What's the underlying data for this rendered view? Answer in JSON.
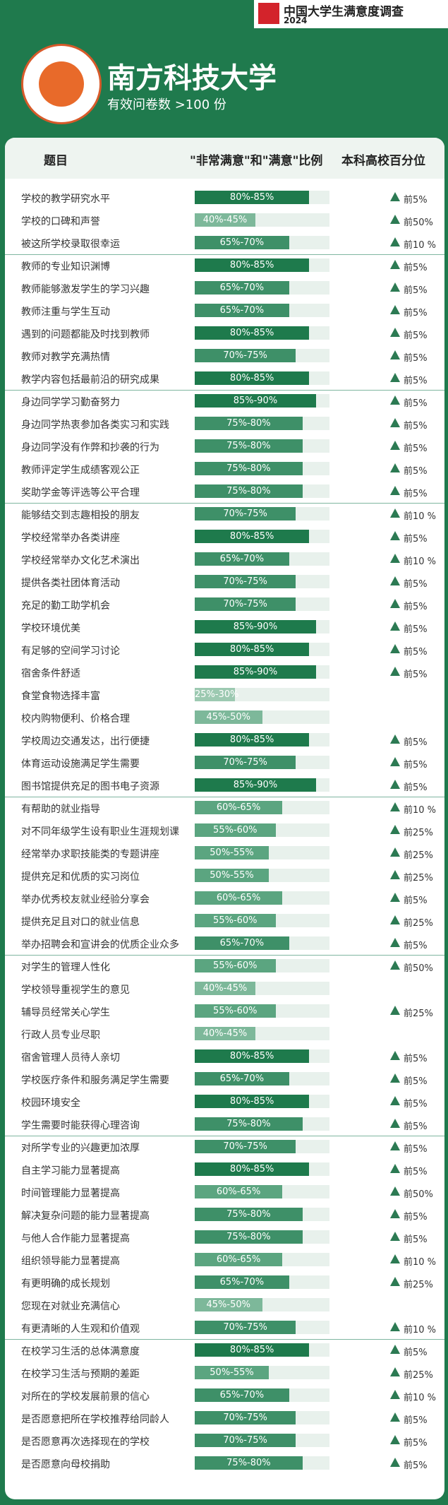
{
  "header": {
    "brand": "中国大学生满意度调查",
    "year": "2024",
    "title": "南方科技大学",
    "subtitle": "有效问卷数 >100 份"
  },
  "table": {
    "columns": [
      "题目",
      "\"非常满意\"和\"满意\"比例",
      "本科高校百分位"
    ],
    "groups": [
      {
        "rows": [
          {
            "item": "学校的教学研究水平",
            "range": "80%-85%",
            "high": 85,
            "rank": "前5%"
          },
          {
            "item": "学校的口碑和声誉",
            "range": "40%-45%",
            "high": 45,
            "rank": "前50%"
          },
          {
            "item": "被这所学校录取很幸运",
            "range": "65%-70%",
            "high": 70,
            "rank": "前10 %"
          }
        ]
      },
      {
        "rows": [
          {
            "item": "教师的专业知识渊博",
            "range": "80%-85%",
            "high": 85,
            "rank": "前5%"
          },
          {
            "item": "教师能够激发学生的学习兴趣",
            "range": "65%-70%",
            "high": 70,
            "rank": "前5%"
          },
          {
            "item": "教师注重与学生互动",
            "range": "65%-70%",
            "high": 70,
            "rank": "前5%"
          },
          {
            "item": "遇到的问题都能及时找到教师",
            "range": "80%-85%",
            "high": 85,
            "rank": "前5%"
          },
          {
            "item": "教师对教学充满热情",
            "range": "70%-75%",
            "high": 75,
            "rank": "前5%"
          },
          {
            "item": "教学内容包括最前沿的研究成果",
            "range": "80%-85%",
            "high": 85,
            "rank": "前5%"
          }
        ]
      },
      {
        "rows": [
          {
            "item": "身边同学学习勤奋努力",
            "range": "85%-90%",
            "high": 90,
            "rank": "前5%"
          },
          {
            "item": "身边同学热衷参加各类实习和实践",
            "range": "75%-80%",
            "high": 80,
            "rank": "前5%"
          },
          {
            "item": "身边同学没有作弊和抄袭的行为",
            "range": "75%-80%",
            "high": 80,
            "rank": "前5%"
          },
          {
            "item": "教师评定学生成绩客观公正",
            "range": "75%-80%",
            "high": 80,
            "rank": "前5%"
          },
          {
            "item": "奖助学金等评选等公平合理",
            "range": "75%-80%",
            "high": 80,
            "rank": "前5%"
          }
        ]
      },
      {
        "rows": [
          {
            "item": "能够结交到志趣相投的朋友",
            "range": "70%-75%",
            "high": 75,
            "rank": "前10 %"
          },
          {
            "item": "学校经常举办各类讲座",
            "range": "80%-85%",
            "high": 85,
            "rank": "前5%"
          },
          {
            "item": "学校经常举办文化艺术演出",
            "range": "65%-70%",
            "high": 70,
            "rank": "前10 %"
          },
          {
            "item": "提供各类社团体育活动",
            "range": "70%-75%",
            "high": 75,
            "rank": "前5%"
          },
          {
            "item": "充足的勤工助学机会",
            "range": "70%-75%",
            "high": 75,
            "rank": "前5%"
          },
          {
            "item": "学校环境优美",
            "range": "85%-90%",
            "high": 90,
            "rank": "前5%"
          },
          {
            "item": "有足够的空间学习讨论",
            "range": "80%-85%",
            "high": 85,
            "rank": "前5%"
          },
          {
            "item": "宿舍条件舒适",
            "range": "85%-90%",
            "high": 90,
            "rank": "前5%"
          },
          {
            "item": "食堂食物选择丰富",
            "range": "25%-30%",
            "high": 30
          },
          {
            "item": "校内购物便利、价格合理",
            "range": "45%-50%",
            "high": 50
          },
          {
            "item": "学校周边交通发达，出行便捷",
            "range": "80%-85%",
            "high": 85,
            "rank": "前5%"
          },
          {
            "item": "体育运动设施满足学生需要",
            "range": "70%-75%",
            "high": 75,
            "rank": "前5%"
          },
          {
            "item": "图书馆提供充足的图书电子资源",
            "range": "85%-90%",
            "high": 90,
            "rank": "前5%"
          }
        ]
      },
      {
        "rows": [
          {
            "item": "有帮助的就业指导",
            "range": "60%-65%",
            "high": 65,
            "rank": "前10 %"
          },
          {
            "item": "对不同年级学生设有职业生涯规划课",
            "range": "55%-60%",
            "high": 60,
            "rank": "前25%"
          },
          {
            "item": "经常举办求职技能类的专题讲座",
            "range": "50%-55%",
            "high": 55,
            "rank": "前25%"
          },
          {
            "item": "提供充足和优质的实习岗位",
            "range": "50%-55%",
            "high": 55,
            "rank": "前25%"
          },
          {
            "item": "举办优秀校友就业经验分享会",
            "range": "60%-65%",
            "high": 65,
            "rank": "前5%"
          },
          {
            "item": "提供充足且对口的就业信息",
            "range": "55%-60%",
            "high": 60,
            "rank": "前25%"
          },
          {
            "item": "举办招聘会和宣讲会的优质企业众多",
            "range": "65%-70%",
            "high": 70,
            "rank": "前5%"
          }
        ]
      },
      {
        "rows": [
          {
            "item": "对学生的管理人性化",
            "range": "55%-60%",
            "high": 60,
            "rank": "前50%"
          },
          {
            "item": "学校领导重视学生的意见",
            "range": "40%-45%",
            "high": 45
          },
          {
            "item": "辅导员经常关心学生",
            "range": "55%-60%",
            "high": 60,
            "rank": "前25%"
          },
          {
            "item": "行政人员专业尽职",
            "range": "40%-45%",
            "high": 45
          },
          {
            "item": "宿舍管理人员待人亲切",
            "range": "80%-85%",
            "high": 85,
            "rank": "前5%"
          },
          {
            "item": "学校医疗条件和服务满足学生需要",
            "range": "65%-70%",
            "high": 70,
            "rank": "前5%"
          },
          {
            "item": "校园环境安全",
            "range": "80%-85%",
            "high": 85,
            "rank": "前5%"
          },
          {
            "item": "学生需要时能获得心理咨询",
            "range": "75%-80%",
            "high": 80,
            "rank": "前5%"
          }
        ]
      },
      {
        "rows": [
          {
            "item": "对所学专业的兴趣更加浓厚",
            "range": "70%-75%",
            "high": 75,
            "rank": "前5%"
          },
          {
            "item": "自主学习能力显著提高",
            "range": "80%-85%",
            "high": 85,
            "rank": "前5%"
          },
          {
            "item": "时间管理能力显著提高",
            "range": "60%-65%",
            "high": 65,
            "rank": "前50%"
          },
          {
            "item": "解决复杂问题的能力显著提高",
            "range": "75%-80%",
            "high": 80,
            "rank": "前5%"
          },
          {
            "item": "与他人合作能力显著提高",
            "range": "75%-80%",
            "high": 80,
            "rank": "前5%"
          },
          {
            "item": "组织领导能力显著提高",
            "range": "60%-65%",
            "high": 65,
            "rank": "前10 %"
          },
          {
            "item": "有更明确的成长规划",
            "range": "65%-70%",
            "high": 70,
            "rank": "前25%"
          },
          {
            "item": "您现在对就业充满信心",
            "range": "45%-50%",
            "high": 50
          },
          {
            "item": "有更清晰的人生观和价值观",
            "range": "70%-75%",
            "high": 75,
            "rank": "前10 %"
          }
        ]
      },
      {
        "rows": [
          {
            "item": "在校学习生活的总体满意度",
            "range": "80%-85%",
            "high": 85,
            "rank": "前5%"
          },
          {
            "item": "在校学习生活与预期的差距",
            "range": "50%-55%",
            "high": 55,
            "rank": "前25%"
          },
          {
            "item": "对所在的学校发展前景的信心",
            "range": "65%-70%",
            "high": 70,
            "rank": "前10 %"
          },
          {
            "item": "是否愿意把所在学校推荐给同龄人",
            "range": "70%-75%",
            "high": 75,
            "rank": "前5%"
          },
          {
            "item": "是否愿意再次选择现在的学校",
            "range": "70%-75%",
            "high": 75,
            "rank": "前5%"
          },
          {
            "item": "是否愿意向母校捐助",
            "range": "75%-80%",
            "high": 80,
            "rank": "前5%"
          }
        ]
      }
    ]
  }
}
